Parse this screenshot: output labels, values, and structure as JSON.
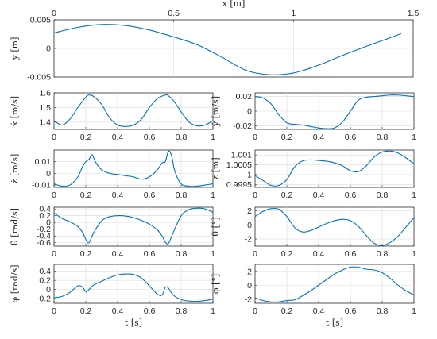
{
  "colors": {
    "series": "#0072BD",
    "axis": "#262626",
    "grid": "#dcdcdc"
  },
  "chart_data": [
    {
      "id": "y",
      "type": "line",
      "xlabel": "x [m]",
      "xlabel_position": "top",
      "ylabel": "y [m]",
      "xlim": [
        0,
        1.5
      ],
      "ylim": [
        -0.005,
        0.005
      ],
      "xticks": [
        0,
        0.5,
        1,
        1.5
      ],
      "xtick_labels": [
        "0",
        "0.5",
        "1",
        "1.5"
      ],
      "yticks": [
        -0.005,
        0,
        0.005
      ],
      "ytick_labels": [
        "-0.005",
        "0",
        "0.005"
      ],
      "grid": true,
      "x": [
        0,
        0.1,
        0.2,
        0.3,
        0.4,
        0.5,
        0.6,
        0.7,
        0.8,
        0.9,
        1.0,
        1.1,
        1.2,
        1.3,
        1.4,
        1.45
      ],
      "y": [
        0.0027,
        0.0037,
        0.0042,
        0.004,
        0.0032,
        0.002,
        0.0006,
        -0.0015,
        -0.0038,
        -0.0046,
        -0.0043,
        -0.003,
        -0.0013,
        0.0003,
        0.0018,
        0.0026
      ]
    },
    {
      "id": "xdot",
      "type": "line",
      "ylabel": "ẋ [m/s]",
      "xlim": [
        0,
        1
      ],
      "ylim": [
        1.35,
        1.6
      ],
      "xticks": [
        0,
        0.2,
        0.4,
        0.6,
        0.8,
        1
      ],
      "xtick_labels": [
        "0",
        "0.2",
        "0.4",
        "0.6",
        "0.8",
        "1"
      ],
      "yticks": [
        1.4,
        1.5,
        1.6
      ],
      "ytick_labels": [
        "1.4",
        "1.5",
        "1.6"
      ],
      "grid": true,
      "x": [
        0,
        0.05,
        0.1,
        0.15,
        0.2,
        0.22,
        0.25,
        0.3,
        0.35,
        0.4,
        0.45,
        0.5,
        0.55,
        0.6,
        0.65,
        0.7,
        0.72,
        0.75,
        0.8,
        0.85,
        0.9,
        0.95,
        1.0
      ],
      "y": [
        1.41,
        1.38,
        1.42,
        1.5,
        1.57,
        1.585,
        1.575,
        1.52,
        1.43,
        1.38,
        1.37,
        1.38,
        1.42,
        1.5,
        1.56,
        1.585,
        1.58,
        1.55,
        1.47,
        1.4,
        1.375,
        1.38,
        1.41
      ]
    },
    {
      "id": "ydot",
      "type": "line",
      "ylabel": "ẏ [m/s]",
      "xlim": [
        0,
        1
      ],
      "ylim": [
        -0.025,
        0.025
      ],
      "xticks": [
        0,
        0.2,
        0.4,
        0.6,
        0.8,
        1
      ],
      "xtick_labels": [
        "0",
        "0.2",
        "0.4",
        "0.6",
        "0.8",
        "1"
      ],
      "yticks": [
        -0.02,
        0,
        0.02
      ],
      "ytick_labels": [
        "-0.02",
        "0",
        "0.02"
      ],
      "grid": true,
      "x": [
        0,
        0.05,
        0.1,
        0.15,
        0.2,
        0.25,
        0.3,
        0.35,
        0.4,
        0.45,
        0.5,
        0.55,
        0.6,
        0.65,
        0.7,
        0.75,
        0.8,
        0.85,
        0.9,
        0.95,
        1.0
      ],
      "y": [
        0.02,
        0.018,
        0.01,
        -0.005,
        -0.016,
        -0.018,
        -0.019,
        -0.021,
        -0.023,
        -0.024,
        -0.023,
        -0.015,
        0.0,
        0.015,
        0.019,
        0.02,
        0.021,
        0.022,
        0.022,
        0.021,
        0.02
      ]
    },
    {
      "id": "zdot",
      "type": "line",
      "ylabel": "ż [m/s]",
      "xlim": [
        0,
        1
      ],
      "ylim": [
        -0.012,
        0.02
      ],
      "xticks": [
        0,
        0.2,
        0.4,
        0.6,
        0.8,
        1
      ],
      "xtick_labels": [
        "0",
        "0.2",
        "0.4",
        "0.6",
        "0.8",
        "1"
      ],
      "yticks": [
        -0.01,
        0,
        0.01
      ],
      "ytick_labels": [
        "-0.01",
        "0",
        "0.01"
      ],
      "grid": true,
      "x": [
        0,
        0.05,
        0.1,
        0.15,
        0.18,
        0.2,
        0.22,
        0.24,
        0.26,
        0.3,
        0.35,
        0.4,
        0.45,
        0.5,
        0.55,
        0.6,
        0.65,
        0.68,
        0.7,
        0.72,
        0.74,
        0.76,
        0.8,
        0.85,
        0.9,
        0.95,
        1.0
      ],
      "y": [
        -0.009,
        -0.011,
        -0.01,
        -0.003,
        0.006,
        0.01,
        0.012,
        0.016,
        0.01,
        0.003,
        0.0,
        -0.001,
        -0.002,
        -0.003,
        -0.005,
        -0.003,
        0.003,
        0.009,
        0.01,
        0.019,
        0.015,
        0.002,
        -0.009,
        -0.011,
        -0.011,
        -0.01,
        -0.009
      ]
    },
    {
      "id": "z",
      "type": "line",
      "ylabel": "z [m]",
      "xlim": [
        0,
        1
      ],
      "ylim": [
        0.99935,
        1.00125
      ],
      "xticks": [
        0,
        0.2,
        0.4,
        0.6,
        0.8,
        1
      ],
      "xtick_labels": [
        "0",
        "0.2",
        "0.4",
        "0.6",
        "0.8",
        "1"
      ],
      "yticks": [
        0.9995,
        1.0,
        1.0005,
        1.001
      ],
      "ytick_labels": [
        "0.9995",
        "1",
        "1.0005",
        "1.001"
      ],
      "grid": true,
      "x": [
        0,
        0.05,
        0.1,
        0.15,
        0.2,
        0.25,
        0.3,
        0.35,
        0.4,
        0.45,
        0.5,
        0.55,
        0.6,
        0.65,
        0.7,
        0.75,
        0.8,
        0.85,
        0.9,
        0.95,
        1.0
      ],
      "y": [
        0.99995,
        0.9997,
        0.99945,
        0.99945,
        0.99975,
        1.0004,
        1.0007,
        1.00075,
        1.00072,
        1.00068,
        1.0006,
        1.00045,
        1.0002,
        1.00015,
        1.00045,
        1.0009,
        1.00115,
        1.0012,
        1.0011,
        1.00085,
        1.00055
      ]
    },
    {
      "id": "thetadot",
      "type": "line",
      "ylabel": "θ̇ [rad/s]",
      "xlim": [
        0,
        1
      ],
      "ylim": [
        -0.7,
        0.45
      ],
      "xticks": [
        0,
        0.2,
        0.4,
        0.6,
        0.8,
        1
      ],
      "xtick_labels": [
        "0",
        "0.2",
        "0.4",
        "0.6",
        "0.8",
        "1"
      ],
      "yticks": [
        -0.6,
        -0.4,
        -0.2,
        0,
        0.2,
        0.4
      ],
      "ytick_labels": [
        "-0.6",
        "-0.4",
        "-0.2",
        "0",
        "0.2",
        "0.4"
      ],
      "grid": true,
      "x": [
        0,
        0.05,
        0.1,
        0.15,
        0.18,
        0.2,
        0.22,
        0.25,
        0.3,
        0.35,
        0.4,
        0.45,
        0.5,
        0.55,
        0.6,
        0.65,
        0.68,
        0.7,
        0.72,
        0.75,
        0.8,
        0.85,
        0.9,
        0.95,
        1.0
      ],
      "y": [
        0.28,
        0.12,
        0.02,
        -0.12,
        -0.3,
        -0.5,
        -0.6,
        -0.3,
        0.05,
        0.17,
        0.2,
        0.19,
        0.14,
        0.06,
        -0.05,
        -0.22,
        -0.4,
        -0.58,
        -0.62,
        -0.3,
        0.2,
        0.38,
        0.42,
        0.4,
        0.3
      ]
    },
    {
      "id": "theta",
      "type": "line",
      "ylabel": "θ [°]",
      "xlim": [
        0,
        1
      ],
      "ylim": [
        -3,
        2.5
      ],
      "xticks": [
        0,
        0.2,
        0.4,
        0.6,
        0.8,
        1
      ],
      "xtick_labels": [
        "0",
        "0.2",
        "0.4",
        "0.6",
        "0.8",
        "1"
      ],
      "yticks": [
        -2,
        0,
        2
      ],
      "ytick_labels": [
        "-2",
        "0",
        "2"
      ],
      "grid": true,
      "x": [
        0,
        0.05,
        0.1,
        0.15,
        0.2,
        0.25,
        0.3,
        0.35,
        0.4,
        0.45,
        0.5,
        0.55,
        0.6,
        0.65,
        0.7,
        0.75,
        0.8,
        0.85,
        0.9,
        0.95,
        1.0
      ],
      "y": [
        1.2,
        1.9,
        2.3,
        2.2,
        1.2,
        -0.4,
        -1.0,
        -0.8,
        -0.3,
        0.2,
        0.6,
        0.8,
        0.6,
        -0.2,
        -1.5,
        -2.6,
        -2.9,
        -2.5,
        -1.6,
        -0.3,
        1.0
      ]
    },
    {
      "id": "phidot",
      "type": "line",
      "ylabel": "φ̇ [rad/s]",
      "xlabel": "t [s]",
      "xlim": [
        0,
        1
      ],
      "ylim": [
        -0.3,
        0.55
      ],
      "xticks": [
        0,
        0.2,
        0.4,
        0.6,
        0.8,
        1
      ],
      "xtick_labels": [
        "0",
        "0.2",
        "0.4",
        "0.6",
        "0.8",
        "1"
      ],
      "yticks": [
        -0.2,
        0,
        0.2,
        0.4
      ],
      "ytick_labels": [
        "-0.2",
        "0",
        "0.2",
        "0.4"
      ],
      "grid": true,
      "x": [
        0,
        0.05,
        0.1,
        0.15,
        0.18,
        0.2,
        0.22,
        0.25,
        0.3,
        0.35,
        0.4,
        0.45,
        0.5,
        0.55,
        0.6,
        0.65,
        0.68,
        0.7,
        0.72,
        0.75,
        0.8,
        0.85,
        0.9,
        0.95,
        1.0
      ],
      "y": [
        -0.18,
        -0.15,
        -0.06,
        0.08,
        0.05,
        -0.05,
        0.0,
        0.1,
        0.18,
        0.26,
        0.32,
        0.34,
        0.33,
        0.25,
        0.08,
        -0.1,
        -0.12,
        0.05,
        0.03,
        -0.12,
        -0.22,
        -0.25,
        -0.26,
        -0.24,
        -0.21
      ]
    },
    {
      "id": "phi",
      "type": "line",
      "ylabel": "φ [°]",
      "xlabel": "t [s]",
      "xlim": [
        0,
        1
      ],
      "ylim": [
        -2.6,
        3.0
      ],
      "xticks": [
        0,
        0.2,
        0.4,
        0.6,
        0.8,
        1
      ],
      "xtick_labels": [
        "0",
        "0.2",
        "0.4",
        "0.6",
        "0.8",
        "1"
      ],
      "yticks": [
        -2,
        0,
        2
      ],
      "ytick_labels": [
        "-2",
        "0",
        "2"
      ],
      "grid": true,
      "x": [
        0,
        0.05,
        0.1,
        0.15,
        0.2,
        0.25,
        0.3,
        0.35,
        0.4,
        0.45,
        0.5,
        0.55,
        0.6,
        0.65,
        0.7,
        0.75,
        0.8,
        0.85,
        0.9,
        0.95,
        1.0
      ],
      "y": [
        -1.8,
        -2.2,
        -2.4,
        -2.4,
        -2.2,
        -2.1,
        -1.5,
        -0.8,
        0.0,
        0.8,
        1.6,
        2.2,
        2.6,
        2.6,
        2.3,
        2.2,
        1.8,
        1.0,
        0.0,
        -0.8,
        -1.4
      ]
    }
  ]
}
